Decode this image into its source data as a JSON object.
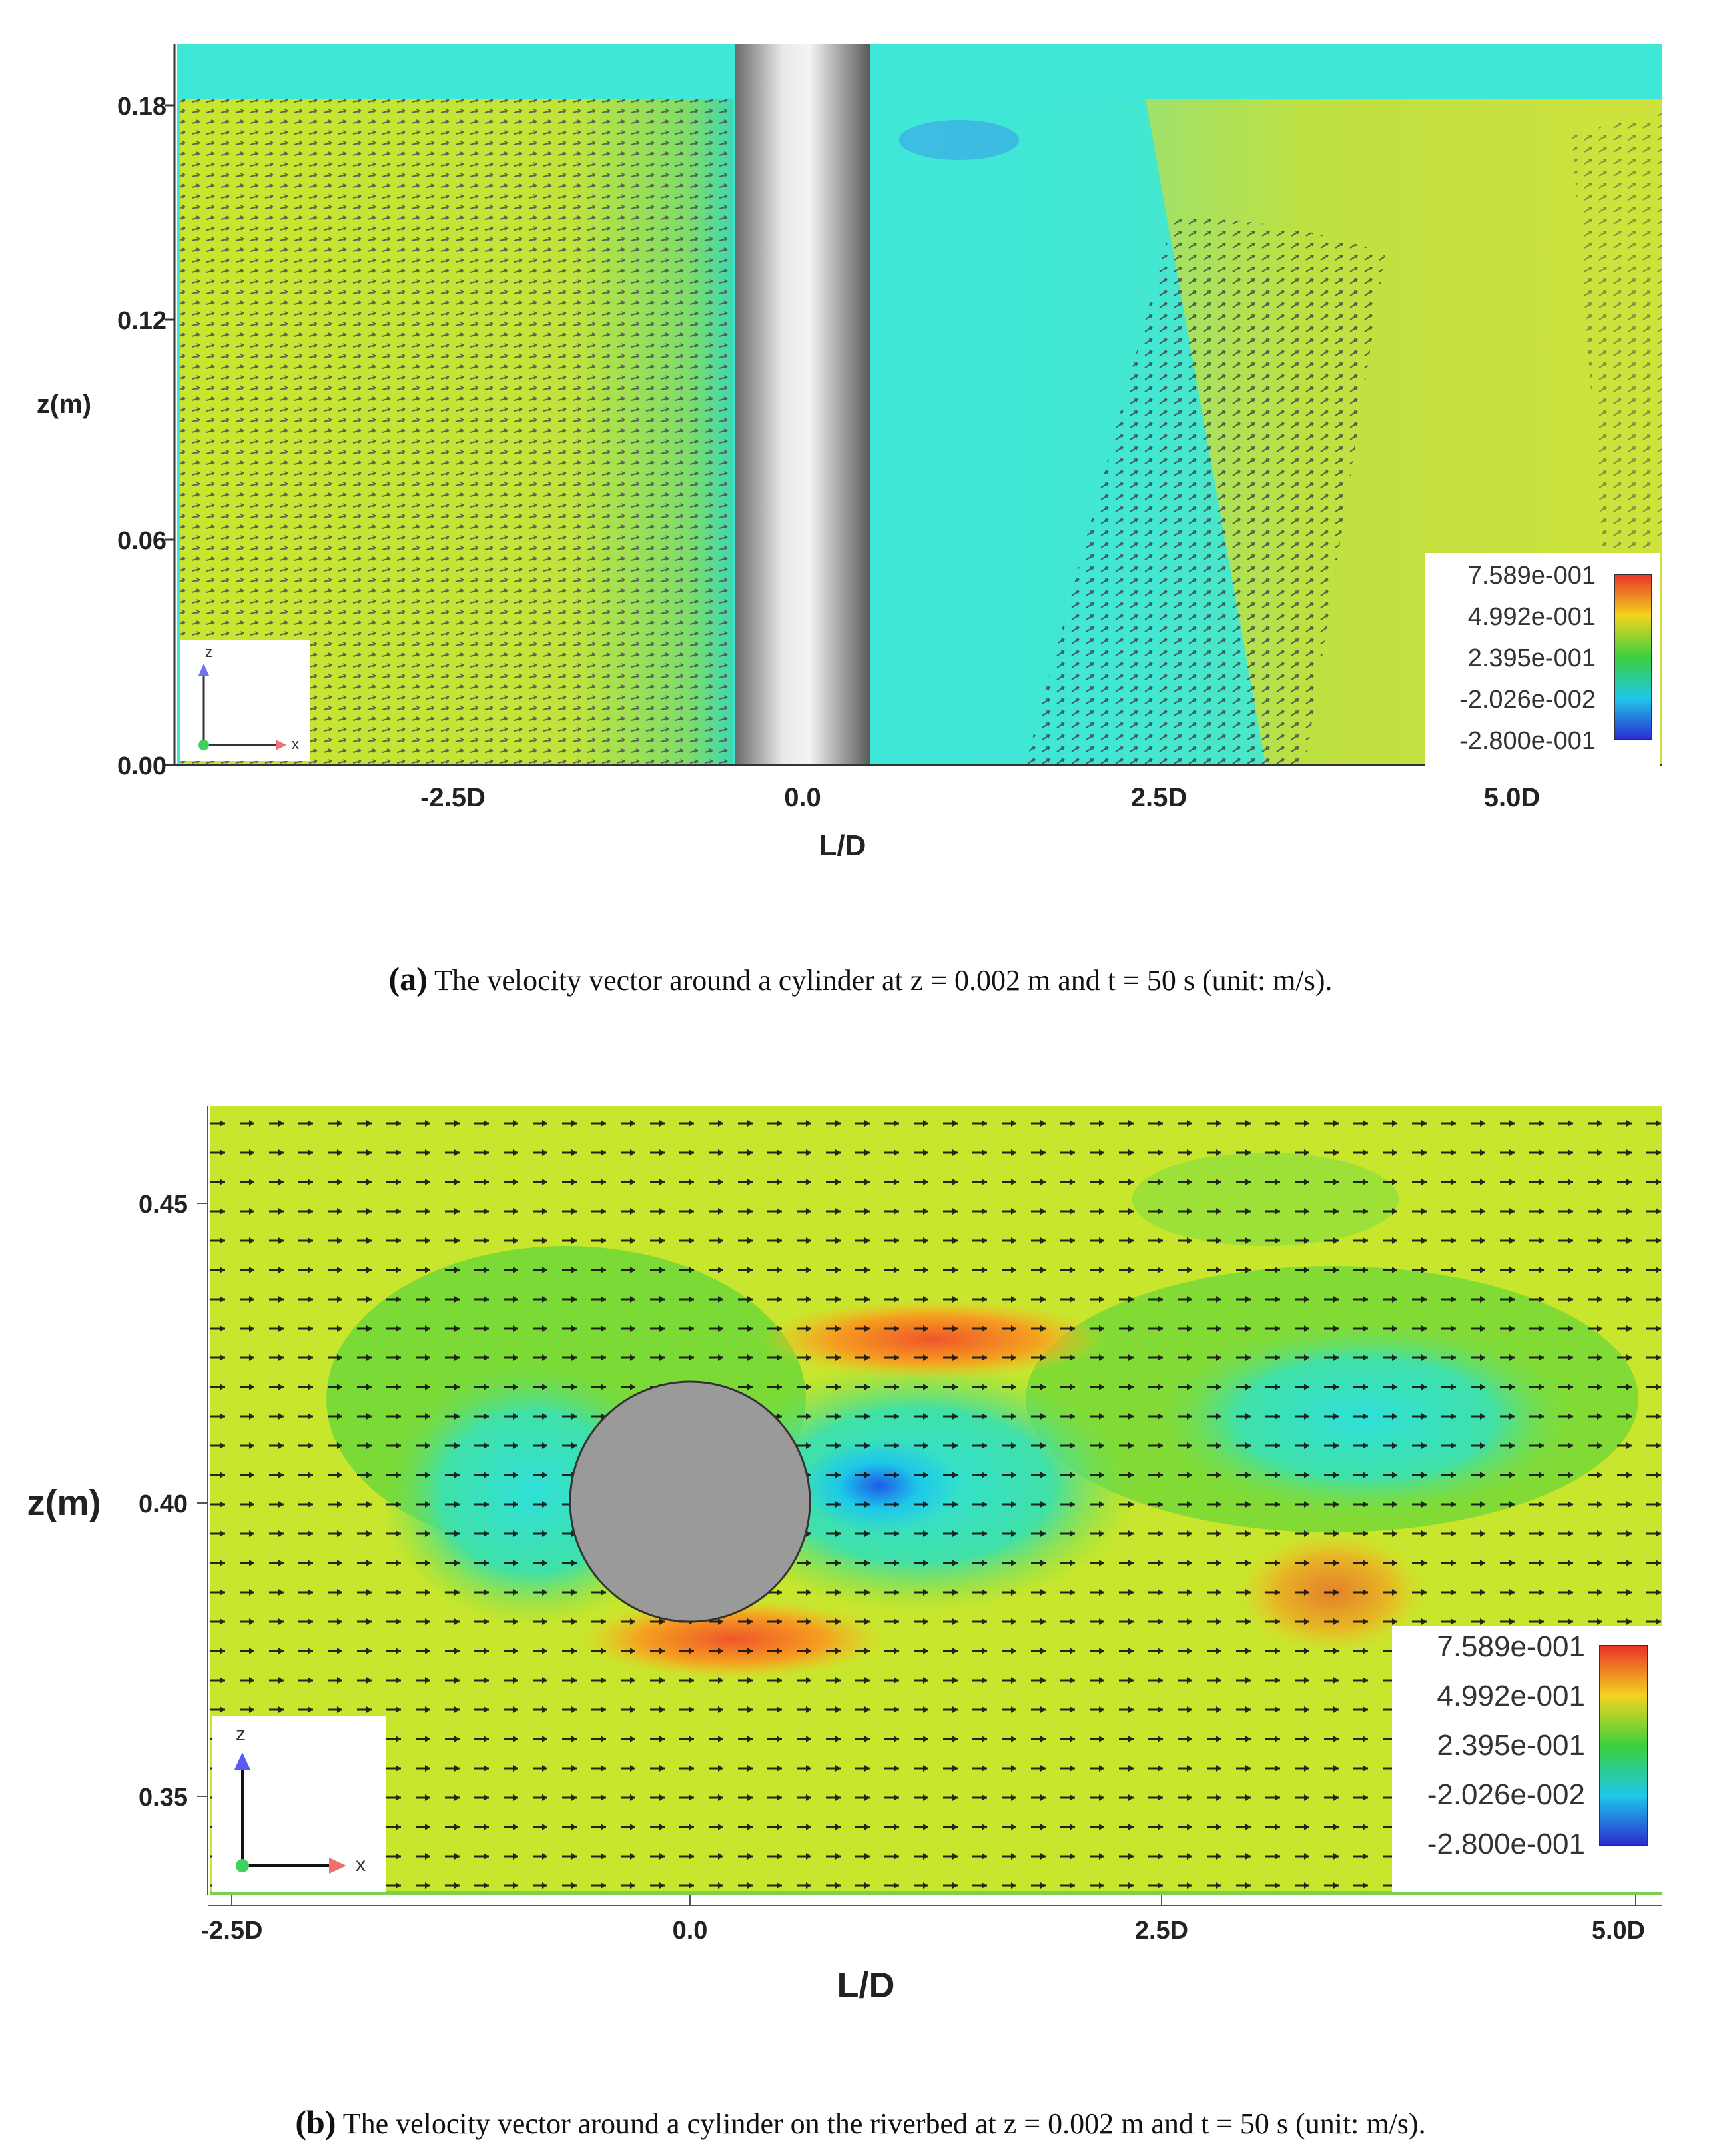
{
  "chart_data": [
    {
      "type": "heatmap",
      "panel_label": "(a)",
      "caption": "The velocity vector around a cylinder at z = 0.002 m and t = 50 s (unit: m/s).",
      "xlabel": "L/D",
      "ylabel": "z(m)",
      "x_ticks": [
        "-2.5D",
        "0.0",
        "2.5D",
        "5.0D"
      ],
      "x_tick_values": [
        -2.5,
        0.0,
        2.5,
        5.0
      ],
      "y_ticks": [
        "0.00",
        "0.06",
        "0.12",
        "0.18"
      ],
      "y_tick_values": [
        0.0,
        0.06,
        0.12,
        0.18
      ],
      "xlim": [
        -4.5,
        6.0
      ],
      "ylim": [
        0.0,
        0.195
      ],
      "obstacle": "vertical cylinder at L/D = 0",
      "colorbar": {
        "labels": [
          "7.589e-001",
          "4.992e-001",
          "2.395e-001",
          "-2.026e-002",
          "-2.800e-001"
        ],
        "values": [
          0.7589,
          0.4992,
          0.2395,
          -0.02026,
          -0.28
        ],
        "colors": [
          "#e8322a",
          "#f5d31e",
          "#3ccf3c",
          "#1ec8e8",
          "#2a2ad0"
        ],
        "placement": "bottom-right"
      },
      "axes_triad": [
        "z",
        "x"
      ]
    },
    {
      "type": "heatmap",
      "panel_label": "(b)",
      "caption": "The velocity vector around a cylinder on the riverbed at z = 0.002 m and t = 50 s (unit: m/s).",
      "xlabel": "L/D",
      "ylabel": "z(m)",
      "x_ticks": [
        "-2.5D",
        "0.0",
        "2.5D",
        "5.0D"
      ],
      "x_tick_values": [
        -2.5,
        0.0,
        2.5,
        5.0
      ],
      "y_ticks": [
        "0.35",
        "0.40",
        "0.45"
      ],
      "y_tick_values": [
        0.35,
        0.4,
        0.45
      ],
      "xlim": [
        -2.5,
        5.1
      ],
      "ylim": [
        0.335,
        0.465
      ],
      "obstacle": "circular cylinder cross-section centred at L/D = 0, z = 0.40",
      "colorbar": {
        "labels": [
          "7.589e-001",
          "4.992e-001",
          "2.395e-001",
          "-2.026e-002",
          "-2.800e-001"
        ],
        "values": [
          0.7589,
          0.4992,
          0.2395,
          -0.02026,
          -0.28
        ],
        "colors": [
          "#e8322a",
          "#f5d31e",
          "#3ccf3c",
          "#1ec8e8",
          "#2a2ad0"
        ],
        "placement": "bottom-right"
      },
      "axes_triad": [
        "z",
        "x"
      ]
    }
  ]
}
